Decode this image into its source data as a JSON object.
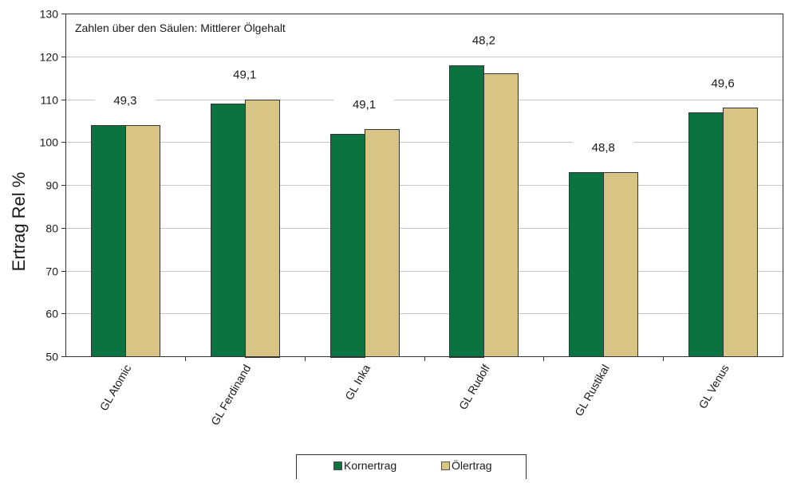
{
  "chart_data": {
    "type": "bar",
    "annotation": "Zahlen über den Säulen: Mittlerer Ölgehalt",
    "ylabel": "Ertrag Rel %",
    "xlabel": "",
    "ylim": [
      50,
      130
    ],
    "yticks": [
      "50",
      "60",
      "70",
      "80",
      "90",
      "100",
      "110",
      "120",
      "130"
    ],
    "ytick_values": [
      50,
      60,
      70,
      80,
      90,
      100,
      110,
      120,
      130
    ],
    "categories": [
      "GL Atomic",
      "GL Ferdinand",
      "GL Inka",
      "GL Rudolf",
      "GL Rustikal",
      "GL Venus"
    ],
    "series": [
      {
        "name": "Kornertrag",
        "color": "#0b7340",
        "values": [
          104,
          109,
          102,
          118,
          93,
          107
        ]
      },
      {
        "name": "Ölertrag",
        "color": "#d8c586",
        "values": [
          104,
          110,
          103,
          116,
          93,
          108
        ]
      }
    ],
    "data_labels": [
      "49,3",
      "49,1",
      "49,1",
      "48,2",
      "48,8",
      "49,6"
    ],
    "data_label_values": [
      49.3,
      49.1,
      49.1,
      48.2,
      48.8,
      49.6
    ],
    "grid": true,
    "legend_position": "bottom"
  }
}
